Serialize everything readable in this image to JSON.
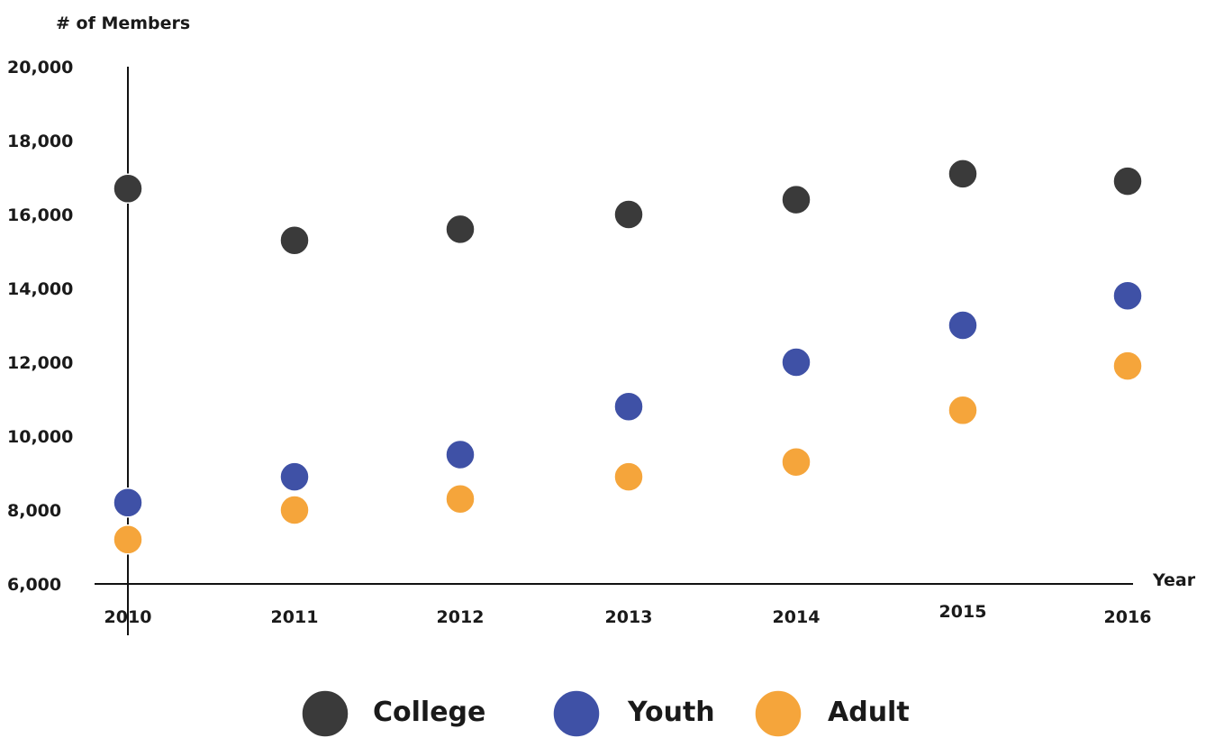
{
  "chart_data": {
    "type": "scatter",
    "title": "",
    "ylabel": "# of Members",
    "xlabel": "Year",
    "categories": [
      "2010",
      "2011",
      "2012",
      "2013",
      "2014",
      "2015",
      "2016"
    ],
    "ylim": [
      6000,
      20000
    ],
    "yticks": [
      6000,
      8000,
      10000,
      12000,
      14000,
      16000,
      18000,
      20000
    ],
    "ytick_labels": [
      "6,000",
      "8,000",
      "10,000",
      "12,000",
      "14,000",
      "16,000",
      "18,000",
      "20,000"
    ],
    "grid": false,
    "legend_position": "bottom-center",
    "series": [
      {
        "name": "College",
        "color": "#3a3a3a",
        "values": [
          16700,
          15300,
          15600,
          16000,
          16400,
          17100,
          16900
        ]
      },
      {
        "name": "Youth",
        "color": "#3f51a6",
        "values": [
          8200,
          8900,
          9500,
          10800,
          12000,
          13000,
          13800
        ]
      },
      {
        "name": "Adult",
        "color": "#f5a53b",
        "values": [
          7200,
          8000,
          8300,
          8900,
          9300,
          10700,
          11900
        ]
      }
    ]
  }
}
